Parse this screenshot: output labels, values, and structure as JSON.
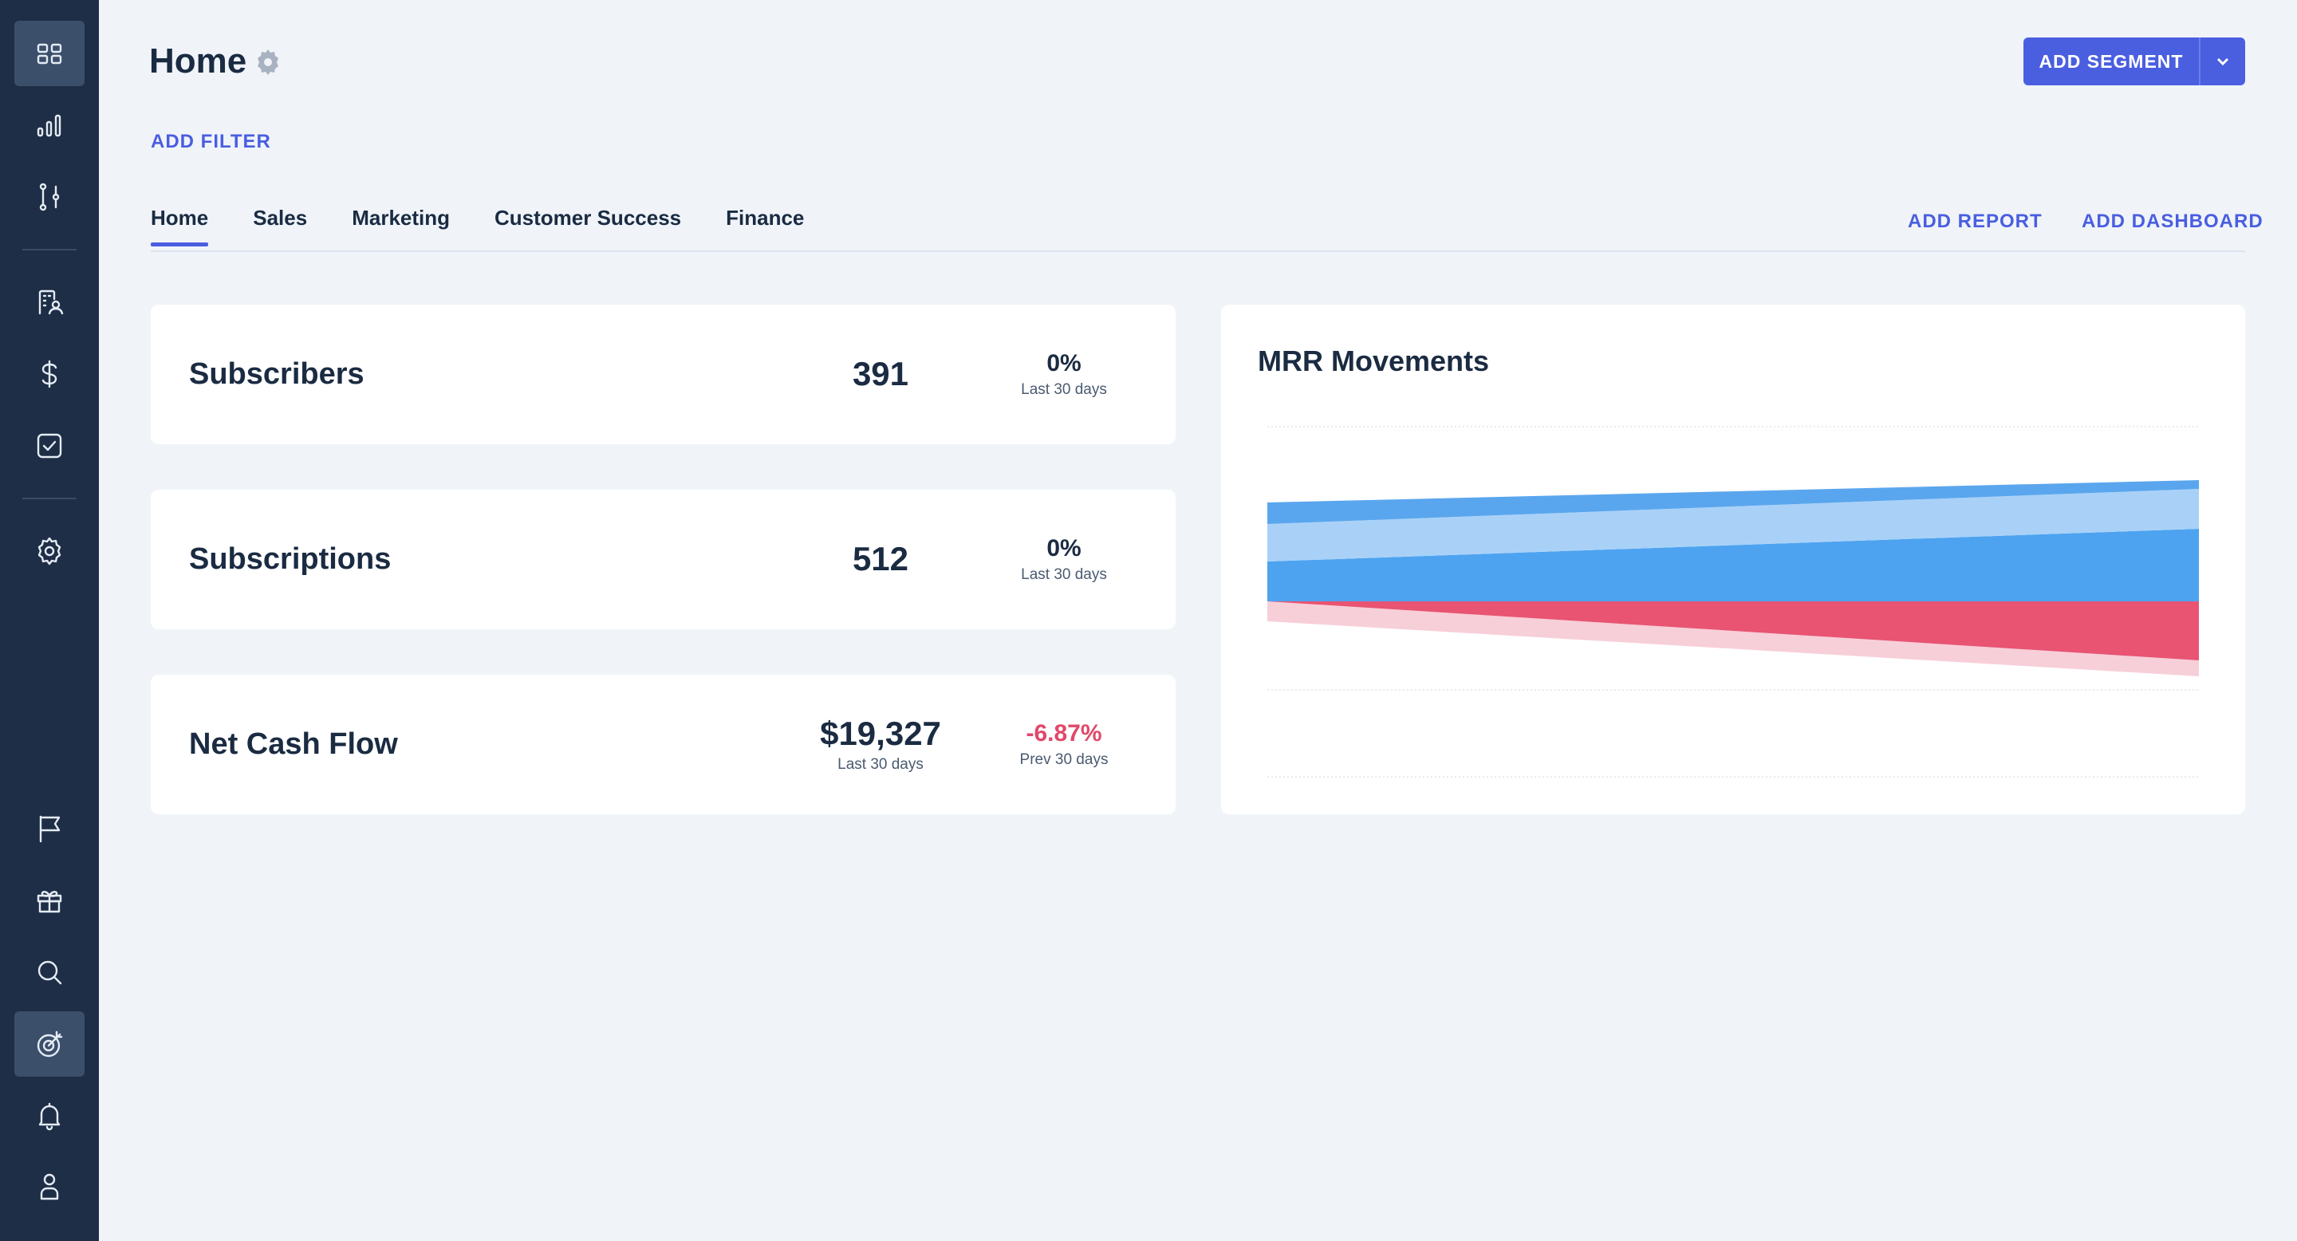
{
  "header": {
    "title": "Home",
    "add_segment_label": "ADD SEGMENT",
    "add_filter_label": "ADD FILTER"
  },
  "tabs": [
    {
      "label": "Home",
      "active": true
    },
    {
      "label": "Sales",
      "active": false
    },
    {
      "label": "Marketing",
      "active": false
    },
    {
      "label": "Customer Success",
      "active": false
    },
    {
      "label": "Finance",
      "active": false
    }
  ],
  "tab_actions": {
    "add_report": "ADD REPORT",
    "add_dashboard": "ADD DASHBOARD"
  },
  "sidebar": {
    "items": [
      {
        "icon": "dashboard-grid-icon",
        "active": true
      },
      {
        "icon": "bar-chart-icon",
        "active": false
      },
      {
        "icon": "flow-icon",
        "active": false
      },
      {
        "icon": "building-user-icon",
        "active": false
      },
      {
        "icon": "dollar-icon",
        "active": false
      },
      {
        "icon": "checkbox-icon",
        "active": false
      },
      {
        "icon": "settings-icon",
        "active": false
      },
      {
        "icon": "flag-icon",
        "active": false
      },
      {
        "icon": "gift-icon",
        "active": false
      },
      {
        "icon": "search-icon",
        "active": false
      },
      {
        "icon": "target-icon",
        "active": true
      },
      {
        "icon": "bell-icon",
        "active": false
      },
      {
        "icon": "user-icon",
        "active": false
      }
    ]
  },
  "metrics": [
    {
      "label": "Subscribers",
      "value": "391",
      "value_sub": "",
      "change": "0%",
      "change_sub": "Last 30 days",
      "negative": false
    },
    {
      "label": "Subscriptions",
      "value": "512",
      "value_sub": "",
      "change": "0%",
      "change_sub": "Last 30 days",
      "negative": false
    },
    {
      "label": "Net Cash Flow",
      "value": "$19,327",
      "value_sub": "Last 30 days",
      "change": "-6.87%",
      "change_sub": "Prev 30 days",
      "negative": true
    }
  ],
  "chart_data": {
    "type": "area",
    "title": "MRR Movements",
    "xlabel": "",
    "ylabel": "",
    "grid": true,
    "colors": {
      "top_band": "#5aa6ee",
      "mid_band": "#a9d1f7",
      "base_band": "#4da3f0",
      "neg_strong": "#e85472",
      "neg_light": "#f7cfd9"
    }
  },
  "colors": {
    "accent": "#4a5ee0",
    "sidebar": "#1e2e46",
    "negative": "#e0486a"
  }
}
